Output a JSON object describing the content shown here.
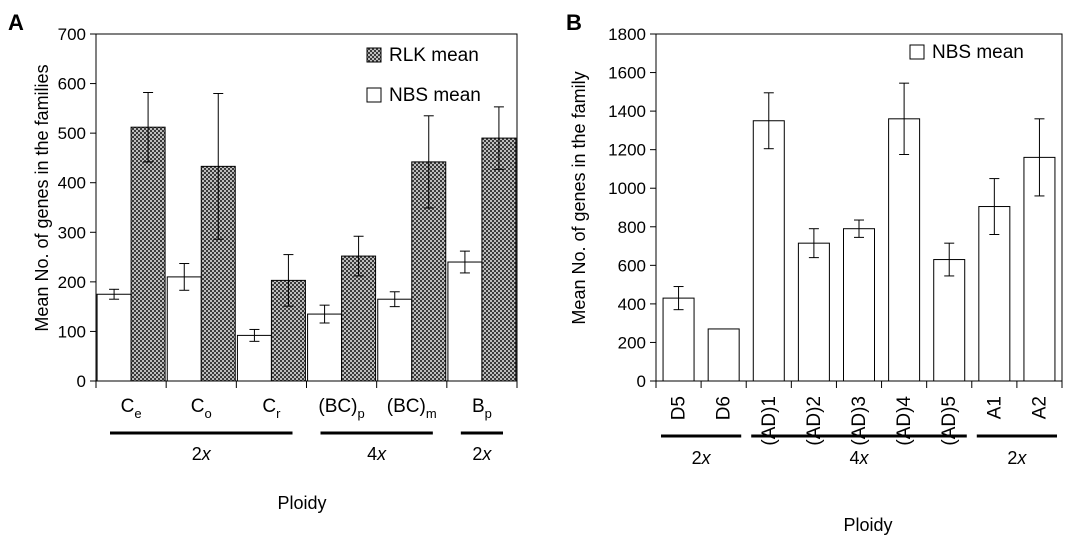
{
  "colors": {
    "bar_fill": "#ffffff",
    "hatch_bg": "#bdbdbd",
    "hatch_dark": "#3a3a3a",
    "stroke": "#000000"
  },
  "chart_data": [
    {
      "type": "bar",
      "panel": "A",
      "ylabel": "Mean No. of genes in the families",
      "xlabel": "Ploidy",
      "ylim": [
        0,
        700
      ],
      "yticks": [
        0,
        100,
        200,
        300,
        400,
        500,
        600,
        700
      ],
      "grid": false,
      "legend_position": "top-right",
      "categories": [
        {
          "base": "C",
          "sub": "e"
        },
        {
          "base": "C",
          "sub": "o"
        },
        {
          "base": "C",
          "sub": "r"
        },
        {
          "base": "(BC)",
          "sub": "p"
        },
        {
          "base": "(BC)",
          "sub": "m"
        },
        {
          "base": "B",
          "sub": "p"
        }
      ],
      "series": [
        {
          "name": "NBS mean",
          "pattern": "open",
          "values": [
            175,
            210,
            92,
            135,
            165,
            240
          ],
          "errors": [
            10,
            27,
            12,
            18,
            15,
            22
          ]
        },
        {
          "name": "RLK mean",
          "pattern": "hatched",
          "values": [
            512,
            433,
            203,
            252,
            442,
            490
          ],
          "errors": [
            70,
            147,
            52,
            40,
            93,
            63
          ]
        }
      ],
      "groups": [
        {
          "label": "2",
          "italic_suffix": "x",
          "from": 0,
          "to": 2
        },
        {
          "label": "4",
          "italic_suffix": "x",
          "from": 3,
          "to": 4
        },
        {
          "label": "2",
          "italic_suffix": "x",
          "from": 5,
          "to": 5
        }
      ]
    },
    {
      "type": "bar",
      "panel": "B",
      "ylabel": "Mean No. of genes in the family",
      "xlabel": "Ploidy",
      "ylim": [
        0,
        1800
      ],
      "yticks": [
        0,
        200,
        400,
        600,
        800,
        1000,
        1200,
        1400,
        1600,
        1800
      ],
      "grid": false,
      "legend_position": "top-right",
      "categories": [
        "D5",
        "D6",
        "(AD)1",
        "(AD)2",
        "(AD)3",
        "(AD)4",
        "(AD)5",
        "A1",
        "A2"
      ],
      "series": [
        {
          "name": "NBS mean",
          "pattern": "open",
          "values": [
            430,
            270,
            1350,
            715,
            790,
            1360,
            630,
            905,
            1160
          ],
          "errors": [
            60,
            0,
            145,
            75,
            45,
            185,
            85,
            145,
            200
          ]
        }
      ],
      "groups": [
        {
          "label": "2",
          "italic_suffix": "x",
          "from": 0,
          "to": 1
        },
        {
          "label": "4",
          "italic_suffix": "x",
          "from": 2,
          "to": 6
        },
        {
          "label": "2",
          "italic_suffix": "x",
          "from": 7,
          "to": 8
        }
      ]
    }
  ]
}
